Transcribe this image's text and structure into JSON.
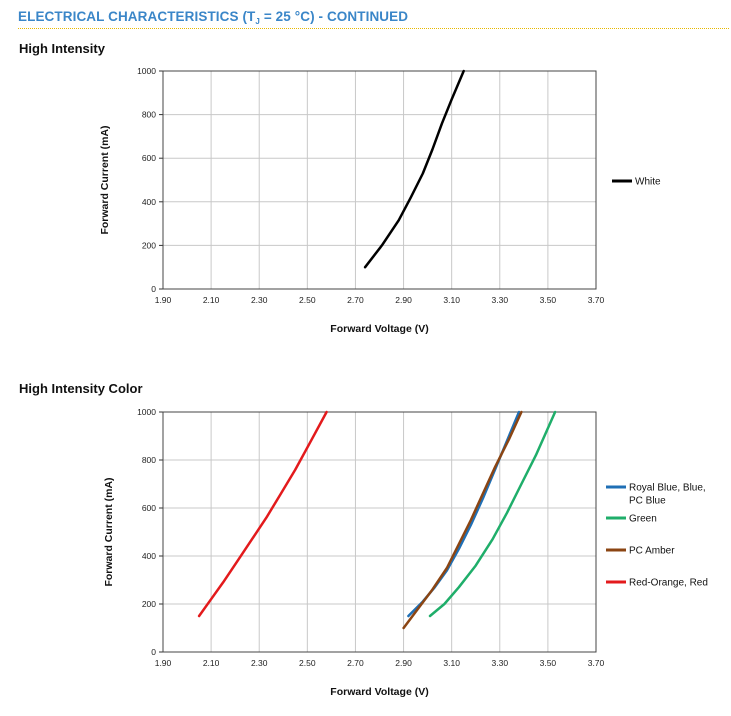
{
  "header": {
    "title_prefix": "ELECTRICAL CHARACTERISTICS (T",
    "title_sub": "J",
    "title_suffix": " = 25 °C) - CONTINUED"
  },
  "chart_data": [
    {
      "type": "line",
      "title": "High Intensity",
      "xlabel": "Forward Voltage (V)",
      "ylabel": "Forward Current (mA)",
      "xlim": [
        1.9,
        3.7
      ],
      "ylim": [
        0,
        1000
      ],
      "xticks": [
        "1.90",
        "2.10",
        "2.30",
        "2.50",
        "2.70",
        "2.90",
        "3.10",
        "3.30",
        "3.50",
        "3.70"
      ],
      "yticks": [
        "0",
        "200",
        "400",
        "600",
        "800",
        "1000"
      ],
      "grid": true,
      "legend": "right",
      "series": [
        {
          "name": "White",
          "color": "#000000",
          "points": [
            [
              2.74,
              100
            ],
            [
              2.81,
              200
            ],
            [
              2.88,
              315
            ],
            [
              2.93,
              420
            ],
            [
              2.98,
              530
            ],
            [
              3.02,
              640
            ],
            [
              3.06,
              760
            ],
            [
              3.1,
              870
            ],
            [
              3.15,
              1000
            ]
          ]
        }
      ]
    },
    {
      "type": "line",
      "title": "High Intensity Color",
      "xlabel": "Forward Voltage (V)",
      "ylabel": "Forward Current (mA)",
      "xlim": [
        1.9,
        3.7
      ],
      "ylim": [
        0,
        1000
      ],
      "xticks": [
        "1.90",
        "2.10",
        "2.30",
        "2.50",
        "2.70",
        "2.90",
        "3.10",
        "3.30",
        "3.50",
        "3.70"
      ],
      "yticks": [
        "0",
        "200",
        "400",
        "600",
        "800",
        "1000"
      ],
      "grid": true,
      "legend": "right",
      "series": [
        {
          "name": "Royal Blue, Blue, PC Blue",
          "legend_lines": [
            "Royal Blue, Blue,",
            "PC Blue"
          ],
          "color": "#1f6fb5",
          "points": [
            [
              2.92,
              150
            ],
            [
              2.98,
              210
            ],
            [
              3.03,
              270
            ],
            [
              3.08,
              340
            ],
            [
              3.13,
              430
            ],
            [
              3.18,
              530
            ],
            [
              3.23,
              640
            ],
            [
              3.28,
              760
            ],
            [
              3.33,
              880
            ],
            [
              3.38,
              1000
            ]
          ]
        },
        {
          "name": "Green",
          "legend_lines": [
            "Green"
          ],
          "color": "#1fae6a",
          "points": [
            [
              3.01,
              150
            ],
            [
              3.07,
              200
            ],
            [
              3.13,
              270
            ],
            [
              3.2,
              360
            ],
            [
              3.27,
              470
            ],
            [
              3.33,
              580
            ],
            [
              3.39,
              700
            ],
            [
              3.45,
              820
            ],
            [
              3.49,
              910
            ],
            [
              3.53,
              1000
            ]
          ]
        },
        {
          "name": "PC Amber",
          "legend_lines": [
            "PC Amber"
          ],
          "color": "#8b4513",
          "points": [
            [
              2.9,
              100
            ],
            [
              2.96,
              180
            ],
            [
              3.02,
              260
            ],
            [
              3.08,
              350
            ],
            [
              3.13,
              450
            ],
            [
              3.18,
              550
            ],
            [
              3.23,
              660
            ],
            [
              3.28,
              770
            ],
            [
              3.34,
              890
            ],
            [
              3.39,
              1000
            ]
          ]
        },
        {
          "name": "Red-Orange, Red",
          "legend_lines": [
            "Red-Orange, Red"
          ],
          "color": "#e31a1c",
          "points": [
            [
              2.05,
              150
            ],
            [
              2.1,
              220
            ],
            [
              2.15,
              290
            ],
            [
              2.21,
              380
            ],
            [
              2.27,
              470
            ],
            [
              2.33,
              560
            ],
            [
              2.39,
              660
            ],
            [
              2.45,
              760
            ],
            [
              2.51,
              870
            ],
            [
              2.58,
              1000
            ]
          ]
        }
      ]
    }
  ]
}
